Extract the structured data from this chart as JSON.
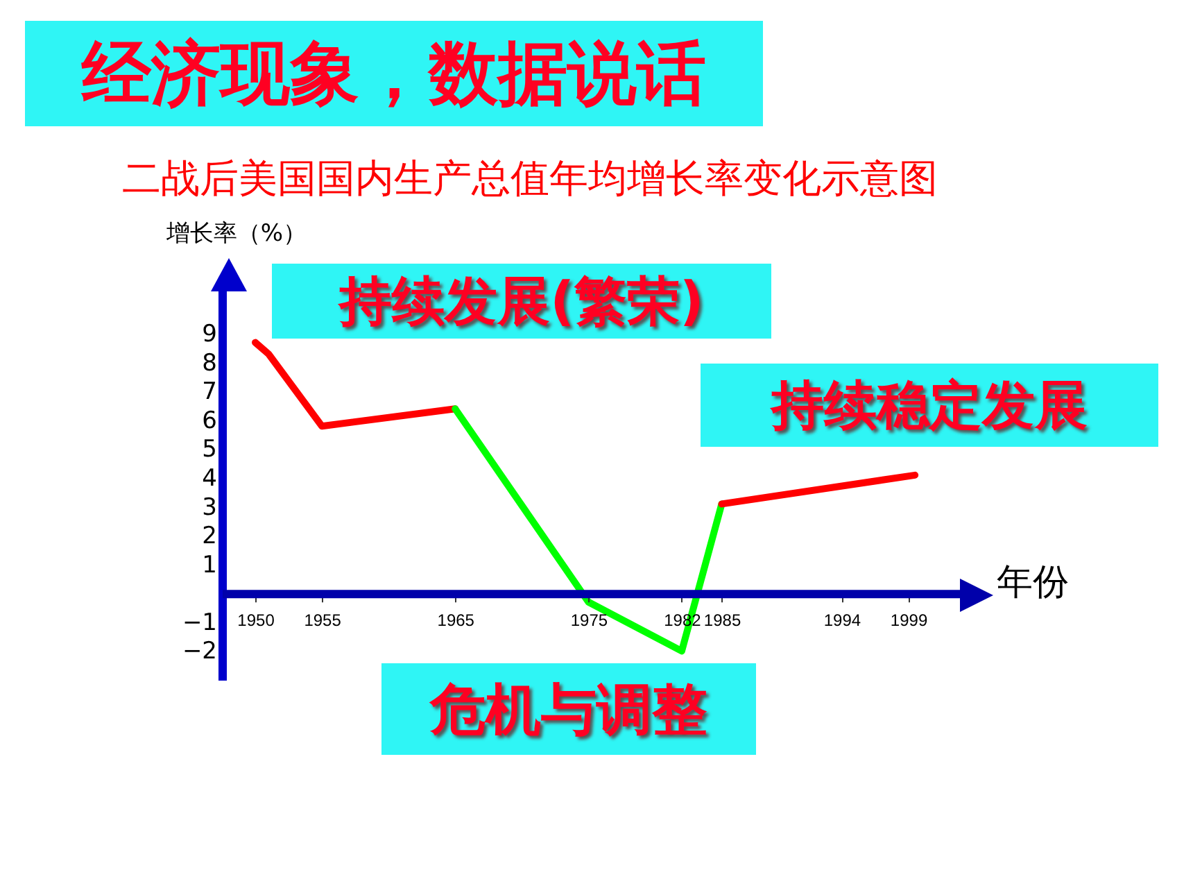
{
  "chart_data": {
    "type": "line",
    "title": "经济现象，数据说话",
    "subtitle": "二战后美国国内生产总值年均增长率变化示意图",
    "xlabel": "年份",
    "ylabel": "增长率（%）",
    "series": [
      {
        "color": "#ff0000",
        "x": [
          1950,
          1951,
          1955,
          1965
        ],
        "values": [
          8.7,
          8.3,
          5.8,
          6.4
        ]
      },
      {
        "color": "#00ff00",
        "x": [
          1965,
          1975,
          1982,
          1985
        ],
        "values": [
          6.4,
          -0.3,
          -2,
          3.1
        ]
      },
      {
        "color": "#ff0000",
        "x": [
          1985,
          1999.5
        ],
        "values": [
          3.1,
          4.1
        ]
      }
    ],
    "xlim": [
      1947.5,
      2003.5
    ],
    "ylim": [
      -3,
      11
    ],
    "xticks": [
      1950,
      1955,
      1965,
      1975,
      1982,
      1985,
      1994,
      1999
    ],
    "yticks": [
      9,
      8,
      7,
      6,
      5,
      4,
      3,
      2,
      1,
      -1,
      -2
    ],
    "annotations": [
      "持续发展(繁荣)",
      "持续稳定发展",
      "危机与调整"
    ]
  }
}
